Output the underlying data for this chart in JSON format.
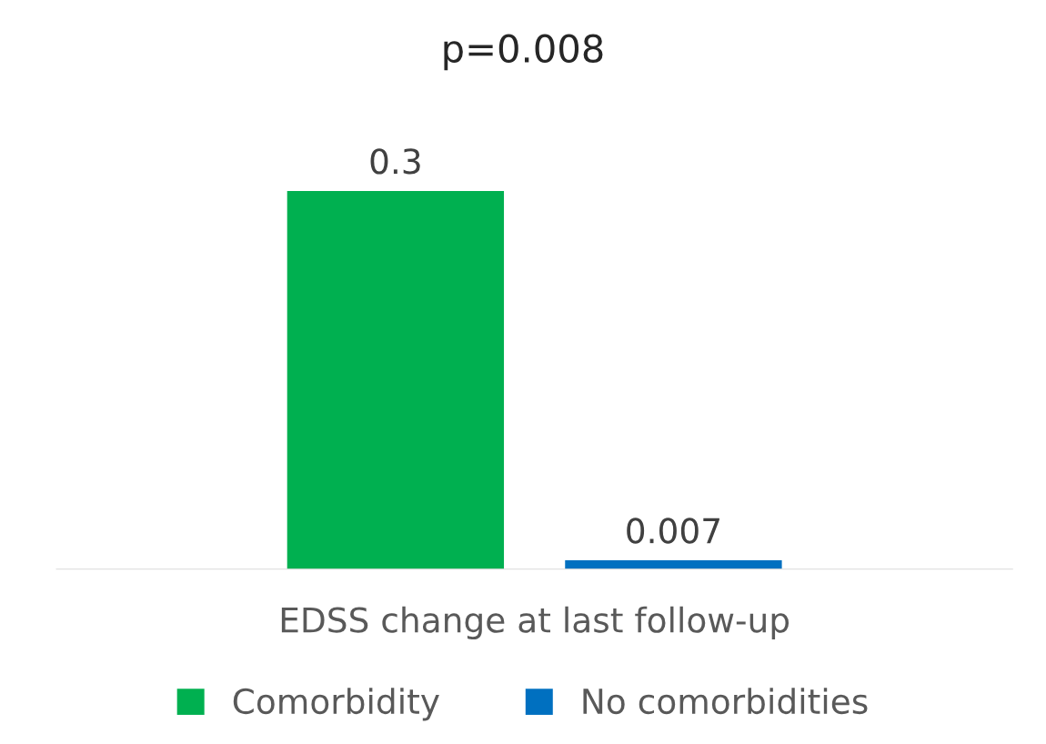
{
  "chart_data": {
    "type": "bar",
    "title": "p=0.008",
    "xlabel": "EDSS change at last follow-up",
    "categories": [
      null,
      null
    ],
    "stacked": true,
    "series": [
      {
        "name": "Comorbidity",
        "color": "#00b050",
        "values": [
          0.3,
          0
        ],
        "value_labels": [
          "0.3",
          null
        ]
      },
      {
        "name": "No comorbidities",
        "color": "#0070c0",
        "values": [
          0,
          0.007
        ],
        "value_labels": [
          null,
          "0.007"
        ]
      }
    ],
    "legend": "bottom",
    "grid": false
  }
}
